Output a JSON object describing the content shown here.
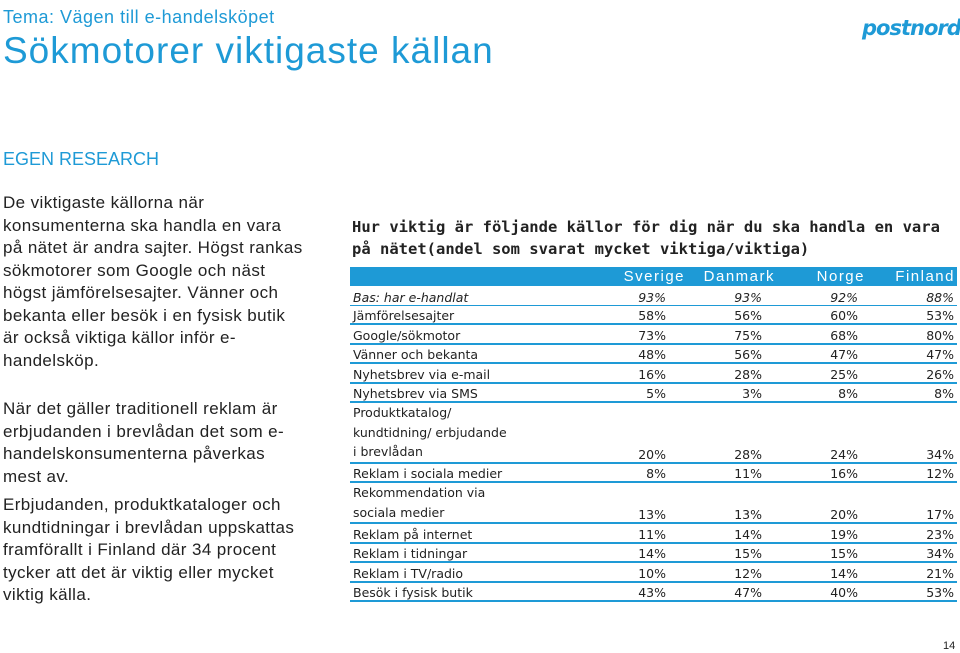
{
  "header": {
    "theme": "Tema: Vägen till e-handelsköpet",
    "title": "Sökmotorer viktigaste källan",
    "logo_text": "postnord"
  },
  "left": {
    "section_title": "EGEN RESEARCH",
    "paragraphs": [
      "De viktigaste källorna när konsumenterna ska handla en vara på nätet är andra sajter. Högst rankas sökmotorer som Google och näst högst jämförelsesajter. Vänner och bekanta eller besök i en fysisk butik är också viktiga källor inför e-handelsköp.",
      "När det gäller traditionell reklam är erbjudanden i brevlådan det som e-handelskonsumenterna påverkas mest av.",
      "Erbjudanden, produktkataloger och kundtidningar i brevlådan uppskattas framförallt i Finland där 34 procent tycker att det är viktig eller mycket viktig källa."
    ]
  },
  "table": {
    "title": "Hur viktig är följande källor för dig när du ska handla en vara på nätet(andel som svarat mycket viktiga/viktiga)",
    "columns": [
      "Sverige",
      "Danmark",
      "Norge",
      "Finland"
    ],
    "rows": [
      {
        "label": "Bas: har e-handlat",
        "values": [
          "93%",
          "93%",
          "92%",
          "88%"
        ]
      },
      {
        "label": "Jämförelsesajter",
        "values": [
          "58%",
          "56%",
          "60%",
          "53%"
        ]
      },
      {
        "label": "Google/sökmotor",
        "values": [
          "73%",
          "75%",
          "68%",
          "80%"
        ]
      },
      {
        "label": "Vänner och bekanta",
        "values": [
          "48%",
          "56%",
          "47%",
          "47%"
        ]
      },
      {
        "label": "Nyhetsbrev via e-mail",
        "values": [
          "16%",
          "28%",
          "25%",
          "26%"
        ]
      },
      {
        "label": "Nyhetsbrev via SMS",
        "values": [
          "5%",
          "3%",
          "8%",
          "8%"
        ]
      },
      {
        "label_lines": [
          "Produktkatalog/",
          "kundtidning/ erbjudande",
          "i brevlådan"
        ],
        "values": [
          "20%",
          "28%",
          "24%",
          "34%"
        ]
      },
      {
        "label": "Reklam i sociala medier",
        "values": [
          "8%",
          "11%",
          "16%",
          "12%"
        ]
      },
      {
        "label_lines": [
          "Rekommendation via",
          "sociala medier"
        ],
        "values": [
          "13%",
          "13%",
          "20%",
          "17%"
        ]
      },
      {
        "label": "Reklam på internet",
        "values": [
          "11%",
          "14%",
          "19%",
          "23%"
        ]
      },
      {
        "label": "Reklam i tidningar",
        "values": [
          "14%",
          "15%",
          "15%",
          "34%"
        ]
      },
      {
        "label": "Reklam i TV/radio",
        "values": [
          "10%",
          "12%",
          "14%",
          "21%"
        ]
      },
      {
        "label": "Besök i fysisk butik",
        "values": [
          "43%",
          "47%",
          "40%",
          "53%"
        ]
      }
    ]
  },
  "footer": {
    "page_number": "14"
  },
  "colors": {
    "accent": "#1e9ad6",
    "text": "#222222"
  }
}
